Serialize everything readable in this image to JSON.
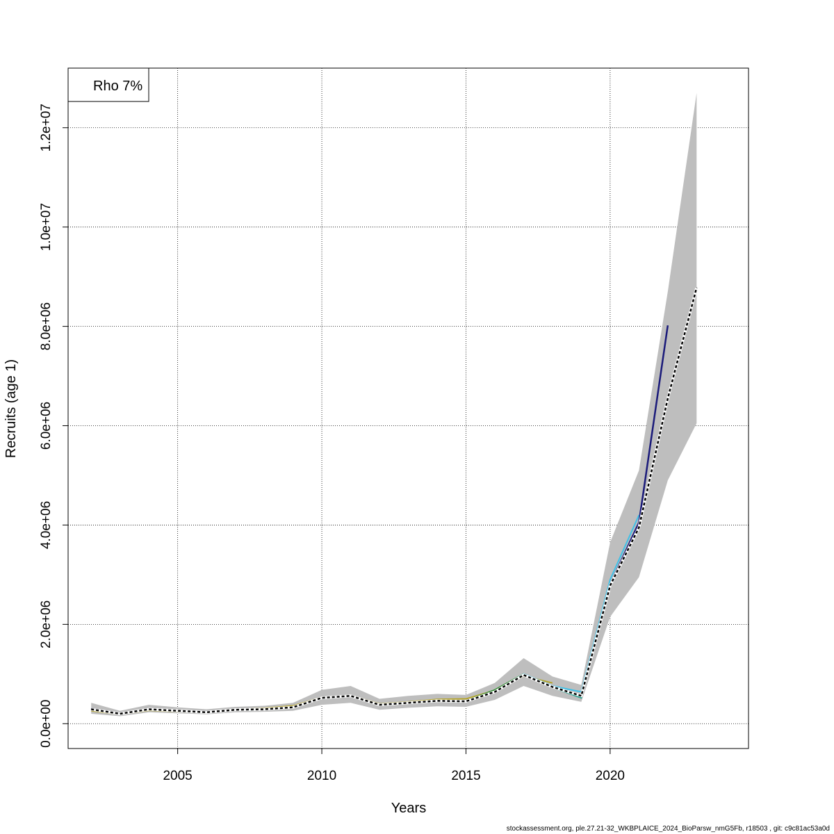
{
  "chart_data": {
    "type": "line",
    "title": "",
    "xlabel": "Years",
    "ylabel": "Recruits (age 1)",
    "xlim": [
      2001.2,
      2024.8
    ],
    "ylim": [
      -500000,
      13200000
    ],
    "grid": true,
    "legend": {
      "position": "top-left",
      "entries": [
        "Rho 7%"
      ]
    },
    "x_ticks": [
      {
        "value": 2005,
        "label": "2005"
      },
      {
        "value": 2010,
        "label": "2010"
      },
      {
        "value": 2015,
        "label": "2015"
      },
      {
        "value": 2020,
        "label": "2020"
      }
    ],
    "y_ticks": [
      {
        "value": 0,
        "label": "0.0e+00"
      },
      {
        "value": 2000000,
        "label": "2.0e+06"
      },
      {
        "value": 4000000,
        "label": "4.0e+06"
      },
      {
        "value": 6000000,
        "label": "6.0e+06"
      },
      {
        "value": 8000000,
        "label": "8.0e+06"
      },
      {
        "value": 10000000,
        "label": "1.0e+07"
      },
      {
        "value": 12000000,
        "label": "1.2e+07"
      }
    ],
    "band": {
      "x": [
        2002,
        2003,
        2004,
        2005,
        2006,
        2007,
        2008,
        2009,
        2010,
        2011,
        2012,
        2013,
        2014,
        2015,
        2016,
        2017,
        2018,
        2019,
        2020,
        2021,
        2022,
        2023
      ],
      "lower": [
        200000,
        150000,
        230000,
        210000,
        190000,
        230000,
        240000,
        260000,
        380000,
        420000,
        280000,
        320000,
        350000,
        340000,
        480000,
        760000,
        560000,
        440000,
        2150000,
        2950000,
        4900000,
        6050000
      ],
      "upper": [
        420000,
        260000,
        380000,
        330000,
        290000,
        340000,
        360000,
        420000,
        680000,
        760000,
        500000,
        560000,
        600000,
        580000,
        820000,
        1320000,
        950000,
        780000,
        3650000,
        5100000,
        8700000,
        12700000
      ]
    },
    "series": [
      {
        "color": "#000000",
        "dashed": true,
        "width": 2.5,
        "x": [
          2002,
          2003,
          2004,
          2005,
          2006,
          2007,
          2008,
          2009,
          2010,
          2011,
          2012,
          2013,
          2014,
          2015,
          2016,
          2017,
          2018,
          2019,
          2020,
          2021,
          2022,
          2023
        ],
        "values": [
          290000,
          200000,
          290000,
          260000,
          230000,
          280000,
          290000,
          330000,
          520000,
          560000,
          380000,
          420000,
          460000,
          450000,
          640000,
          980000,
          740000,
          560000,
          2780000,
          3950000,
          6550000,
          8780000
        ]
      },
      {
        "color": "#1a1a7a",
        "dashed": false,
        "width": 2.5,
        "x": [
          2002,
          2003,
          2004,
          2005,
          2006,
          2007,
          2008,
          2009,
          2010,
          2011,
          2012,
          2013,
          2014,
          2015,
          2016,
          2017,
          2018,
          2019,
          2020,
          2021,
          2022
        ],
        "values": [
          300000,
          205000,
          295000,
          265000,
          235000,
          285000,
          295000,
          335000,
          525000,
          565000,
          385000,
          425000,
          465000,
          455000,
          645000,
          985000,
          745000,
          565000,
          2800000,
          4050000,
          8020000
        ]
      },
      {
        "color": "#3fc1e8",
        "dashed": false,
        "width": 2,
        "x": [
          2002,
          2003,
          2004,
          2005,
          2006,
          2007,
          2008,
          2009,
          2010,
          2011,
          2012,
          2013,
          2014,
          2015,
          2016,
          2017,
          2018,
          2019,
          2020,
          2021
        ],
        "values": [
          285000,
          195000,
          285000,
          255000,
          228000,
          275000,
          285000,
          325000,
          515000,
          555000,
          375000,
          415000,
          455000,
          445000,
          650000,
          1000000,
          760000,
          640000,
          2900000,
          4200000
        ]
      },
      {
        "color": "#1a9e8a",
        "dashed": false,
        "width": 2,
        "x": [
          2002,
          2003,
          2004,
          2005,
          2006,
          2007,
          2008,
          2009,
          2010,
          2011,
          2012,
          2013,
          2014,
          2015,
          2016,
          2017,
          2018,
          2019,
          2020
        ],
        "values": [
          280000,
          195000,
          280000,
          250000,
          225000,
          270000,
          280000,
          320000,
          510000,
          550000,
          370000,
          410000,
          450000,
          440000,
          640000,
          990000,
          730000,
          520000,
          2820000
        ]
      },
      {
        "color": "#2e8b2e",
        "dashed": false,
        "width": 2,
        "x": [
          2002,
          2003,
          2004,
          2005,
          2006,
          2007,
          2008,
          2009,
          2010,
          2011,
          2012,
          2013,
          2014,
          2015,
          2016,
          2017,
          2018,
          2019
        ],
        "values": [
          280000,
          198000,
          285000,
          255000,
          228000,
          275000,
          285000,
          330000,
          520000,
          560000,
          380000,
          420000,
          465000,
          460000,
          680000,
          1000000,
          740000,
          560000
        ]
      },
      {
        "color": "#b5a42a",
        "dashed": false,
        "width": 2,
        "x": [
          2002,
          2003,
          2004,
          2005,
          2006,
          2007,
          2008,
          2009,
          2010,
          2011,
          2012,
          2013,
          2014,
          2015,
          2016,
          2017,
          2018
        ],
        "values": [
          260000,
          190000,
          270000,
          245000,
          222000,
          285000,
          310000,
          360000,
          530000,
          570000,
          400000,
          440000,
          490000,
          500000,
          670000,
          960000,
          820000
        ]
      }
    ]
  },
  "footer": "stockassessment.org, ple.27.21-32_WKBPLAICE_2024_BioParsw_nmG5Fb, r18503 , git: c9c81ac53a0d"
}
